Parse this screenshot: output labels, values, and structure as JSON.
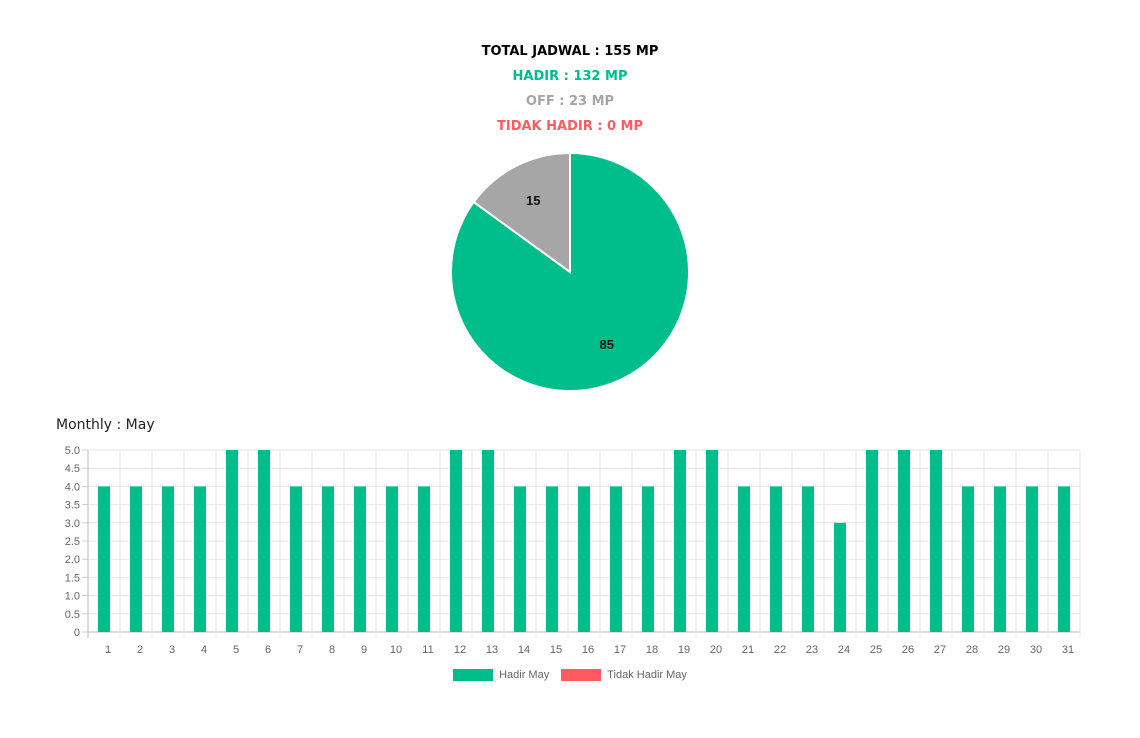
{
  "summary": {
    "total": "TOTAL JADWAL : 155 MP",
    "hadir": "HADIR : 132 MP",
    "off": "OFF : 23 MP",
    "tidak_hadir": "TIDAK HADIR : 0 MP"
  },
  "colors": {
    "hadir": "#00bd8c",
    "off": "#a6a6a6",
    "tidak_hadir": "#ff5a5f",
    "total": "#000000"
  },
  "monthly_title": "Monthly : May",
  "chart_data": [
    {
      "type": "pie",
      "labels": [
        "",
        ""
      ],
      "values": [
        85,
        15
      ],
      "slice_labels": [
        "85",
        "15"
      ],
      "colors": [
        "#00bd8c",
        "#a6a6a6"
      ]
    },
    {
      "type": "bar",
      "categories": [
        "1",
        "2",
        "3",
        "4",
        "5",
        "6",
        "7",
        "8",
        "9",
        "10",
        "11",
        "12",
        "13",
        "14",
        "15",
        "16",
        "17",
        "18",
        "19",
        "20",
        "21",
        "22",
        "23",
        "24",
        "25",
        "26",
        "27",
        "28",
        "29",
        "30",
        "31"
      ],
      "ylim": [
        0,
        5
      ],
      "yticks": [
        "0",
        "0.5",
        "1.0",
        "1.5",
        "2.0",
        "2.5",
        "3.0",
        "3.5",
        "4.0",
        "4.5",
        "5.0"
      ],
      "grid": true,
      "legend_position": "bottom",
      "series": [
        {
          "name": "Hadir May",
          "color": "#00bd8c",
          "values": [
            4,
            4,
            4,
            4,
            5,
            5,
            4,
            4,
            4,
            4,
            4,
            5,
            5,
            4,
            4,
            4,
            4,
            4,
            5,
            5,
            4,
            4,
            4,
            3,
            5,
            5,
            5,
            4,
            4,
            4,
            4
          ]
        },
        {
          "name": "Tidak Hadir May",
          "color": "#ff5a5f",
          "values": [
            0,
            0,
            0,
            0,
            0,
            0,
            0,
            0,
            0,
            0,
            0,
            0,
            0,
            0,
            0,
            0,
            0,
            0,
            0,
            0,
            0,
            0,
            0,
            0,
            0,
            0,
            0,
            0,
            0,
            0,
            0
          ]
        }
      ]
    }
  ]
}
